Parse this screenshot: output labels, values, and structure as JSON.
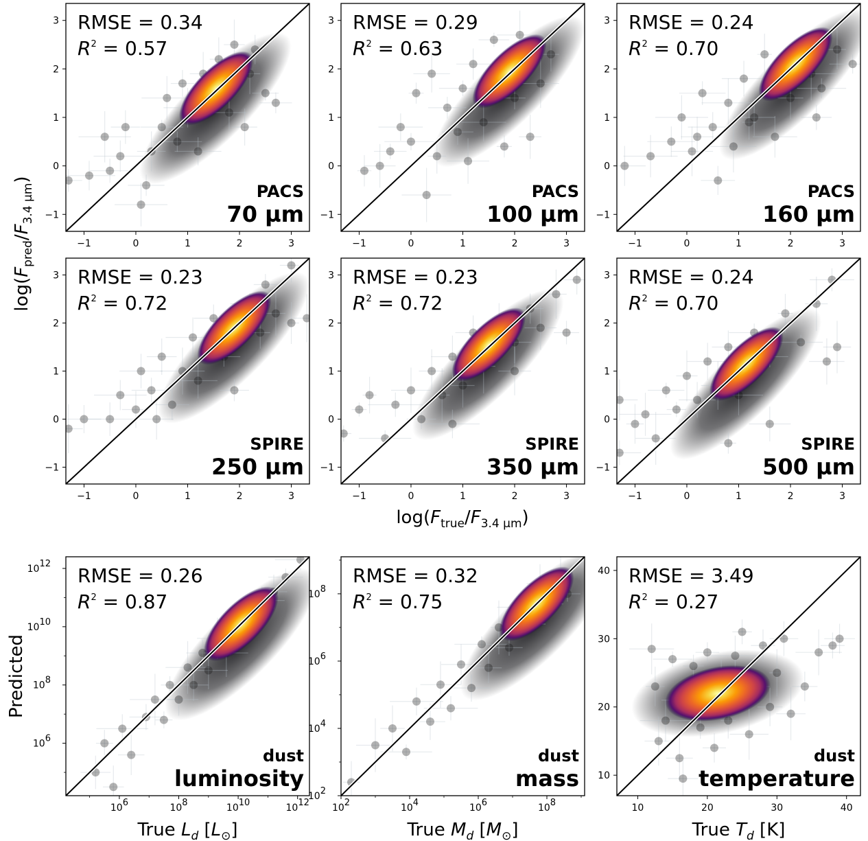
{
  "figure": {
    "ylabel_top": "log(F_pred/F_3.4µm)",
    "xlabel_mid": "log(F_true/F_3.4µm)",
    "ylabel_bottom": "Predicted"
  },
  "chart_data": [
    {
      "type": "scatter",
      "panel": "pacs-70",
      "band_top": "PACS",
      "band_bottom": "70 µm",
      "rmse_text": "RMSE = 0.34",
      "r2_text": "= 0.57",
      "scale": "linear",
      "xlim": [
        -1.35,
        3.35
      ],
      "ylim": [
        -1.35,
        3.35
      ],
      "xticks": [
        -1,
        0,
        1,
        2,
        3
      ],
      "yticks": [
        -1,
        0,
        1,
        2,
        3
      ],
      "xtick_labels": [
        "−1",
        "0",
        "1",
        "2",
        "3"
      ],
      "ytick_labels": [
        "−1",
        "0",
        "1",
        "2",
        "3"
      ],
      "density_peak": [
        1.55,
        1.6
      ],
      "points": [
        [
          -1.3,
          -0.3
        ],
        [
          -0.9,
          -0.2
        ],
        [
          -0.5,
          -0.1
        ],
        [
          -0.3,
          0.2
        ],
        [
          -0.2,
          0.8
        ],
        [
          0.1,
          -0.8
        ],
        [
          0.3,
          0.3
        ],
        [
          0.5,
          0.8
        ],
        [
          0.6,
          1.4
        ],
        [
          0.8,
          0.5
        ],
        [
          0.9,
          1.7
        ],
        [
          1.0,
          1.2
        ],
        [
          1.2,
          0.3
        ],
        [
          1.3,
          1.9
        ],
        [
          1.6,
          2.2
        ],
        [
          1.8,
          1.1
        ],
        [
          2.1,
          0.8
        ],
        [
          2.3,
          2.4
        ],
        [
          2.5,
          1.5
        ],
        [
          2.7,
          1.3
        ],
        [
          -0.6,
          0.6
        ],
        [
          0.2,
          -0.4
        ],
        [
          1.9,
          2.5
        ],
        [
          2.2,
          1.9
        ]
      ],
      "grid": false
    },
    {
      "type": "scatter",
      "panel": "pacs-100",
      "band_top": "PACS",
      "band_bottom": "100 µm",
      "rmse_text": "RMSE = 0.29",
      "r2_text": "= 0.63",
      "scale": "linear",
      "xlim": [
        -1.35,
        3.35
      ],
      "ylim": [
        -1.35,
        3.35
      ],
      "xticks": [
        -1,
        0,
        1,
        2,
        3
      ],
      "yticks": [
        -1,
        0,
        1,
        2,
        3
      ],
      "xtick_labels": [
        "−1",
        "0",
        "1",
        "2",
        "3"
      ],
      "ytick_labels": [
        "−1",
        "0",
        "1",
        "2",
        "3"
      ],
      "density_peak": [
        1.9,
        1.95
      ],
      "points": [
        [
          -0.9,
          -0.1
        ],
        [
          -0.4,
          0.3
        ],
        [
          -0.2,
          0.8
        ],
        [
          0.0,
          0.5
        ],
        [
          0.1,
          1.5
        ],
        [
          0.3,
          -0.6
        ],
        [
          0.5,
          0.2
        ],
        [
          0.7,
          1.2
        ],
        [
          0.9,
          0.7
        ],
        [
          1.0,
          1.6
        ],
        [
          1.2,
          2.1
        ],
        [
          1.4,
          0.9
        ],
        [
          1.6,
          2.6
        ],
        [
          1.8,
          0.4
        ],
        [
          2.0,
          1.4
        ],
        [
          2.3,
          0.6
        ],
        [
          2.5,
          1.7
        ],
        [
          2.7,
          2.3
        ],
        [
          0.4,
          1.9
        ],
        [
          -0.6,
          0.0
        ],
        [
          1.1,
          0.1
        ],
        [
          2.1,
          2.7
        ]
      ],
      "grid": false
    },
    {
      "type": "scatter",
      "panel": "pacs-160",
      "band_top": "PACS",
      "band_bottom": "160 µm",
      "rmse_text": "RMSE = 0.24",
      "r2_text": "= 0.70",
      "scale": "linear",
      "xlim": [
        -1.35,
        3.35
      ],
      "ylim": [
        -1.35,
        3.35
      ],
      "xticks": [
        -1,
        0,
        1,
        2,
        3
      ],
      "yticks": [
        -1,
        0,
        1,
        2,
        3
      ],
      "xtick_labels": [
        "−1",
        "0",
        "1",
        "2",
        "3"
      ],
      "ytick_labels": [
        "−1",
        "0",
        "1",
        "2",
        "3"
      ],
      "density_peak": [
        2.1,
        2.1
      ],
      "points": [
        [
          -1.2,
          0.0
        ],
        [
          -0.7,
          0.2
        ],
        [
          -0.3,
          0.5
        ],
        [
          -0.1,
          1.0
        ],
        [
          0.1,
          0.3
        ],
        [
          0.3,
          1.5
        ],
        [
          0.5,
          0.8
        ],
        [
          0.6,
          -0.3
        ],
        [
          0.8,
          1.3
        ],
        [
          0.9,
          0.4
        ],
        [
          1.1,
          1.8
        ],
        [
          1.3,
          1.0
        ],
        [
          1.5,
          2.3
        ],
        [
          1.7,
          0.6
        ],
        [
          2.0,
          1.4
        ],
        [
          2.4,
          1.9
        ],
        [
          2.6,
          1.6
        ],
        [
          2.9,
          2.4
        ],
        [
          3.2,
          2.1
        ],
        [
          2.5,
          1.0
        ],
        [
          0.2,
          0.6
        ],
        [
          1.2,
          0.9
        ]
      ],
      "grid": false
    },
    {
      "type": "scatter",
      "panel": "spire-250",
      "band_top": "SPIRE",
      "band_bottom": "250 µm",
      "rmse_text": "RMSE = 0.23",
      "r2_text": "= 0.72",
      "scale": "linear",
      "xlim": [
        -1.35,
        3.35
      ],
      "ylim": [
        -1.35,
        3.35
      ],
      "xticks": [
        -1,
        0,
        1,
        2,
        3
      ],
      "yticks": [
        -1,
        0,
        1,
        2,
        3
      ],
      "xtick_labels": [
        "−1",
        "0",
        "1",
        "2",
        "3"
      ],
      "ytick_labels": [
        "−1",
        "0",
        "1",
        "2",
        "3"
      ],
      "density_peak": [
        1.9,
        1.9
      ],
      "points": [
        [
          -1.3,
          -0.2
        ],
        [
          -1.0,
          0.0
        ],
        [
          -0.5,
          0.0
        ],
        [
          -0.3,
          0.5
        ],
        [
          0.0,
          0.2
        ],
        [
          0.1,
          1.0
        ],
        [
          0.3,
          0.6
        ],
        [
          0.5,
          1.3
        ],
        [
          0.7,
          0.3
        ],
        [
          0.9,
          1.0
        ],
        [
          1.1,
          1.7
        ],
        [
          1.2,
          0.8
        ],
        [
          1.5,
          2.1
        ],
        [
          1.7,
          1.3
        ],
        [
          1.9,
          0.6
        ],
        [
          2.2,
          2.4
        ],
        [
          2.4,
          1.8
        ],
        [
          2.7,
          2.2
        ],
        [
          3.0,
          2.0
        ],
        [
          3.3,
          2.1
        ],
        [
          3.0,
          3.2
        ],
        [
          2.5,
          2.8
        ],
        [
          0.4,
          0.0
        ]
      ],
      "grid": false
    },
    {
      "type": "scatter",
      "panel": "spire-350",
      "band_top": "SPIRE",
      "band_bottom": "350 µm",
      "rmse_text": "RMSE = 0.23",
      "r2_text": "= 0.72",
      "scale": "linear",
      "xlim": [
        -1.35,
        3.35
      ],
      "ylim": [
        -1.35,
        3.35
      ],
      "xticks": [
        -1,
        0,
        1,
        2,
        3
      ],
      "yticks": [
        -1,
        0,
        1,
        2,
        3
      ],
      "xtick_labels": [
        "−1",
        "0",
        "1",
        "2",
        "3"
      ],
      "ytick_labels": [
        "−1",
        "0",
        "1",
        "2",
        "3"
      ],
      "density_peak": [
        1.5,
        1.55
      ],
      "points": [
        [
          -1.3,
          -0.3
        ],
        [
          -1.0,
          0.2
        ],
        [
          -0.8,
          0.5
        ],
        [
          -0.5,
          -0.4
        ],
        [
          -0.3,
          0.3
        ],
        [
          0.0,
          0.6
        ],
        [
          0.2,
          0.0
        ],
        [
          0.4,
          1.0
        ],
        [
          0.6,
          0.5
        ],
        [
          0.8,
          1.3
        ],
        [
          1.0,
          0.7
        ],
        [
          1.2,
          1.8
        ],
        [
          1.4,
          1.1
        ],
        [
          1.7,
          2.0
        ],
        [
          2.0,
          1.6
        ],
        [
          2.3,
          2.3
        ],
        [
          2.5,
          1.9
        ],
        [
          2.8,
          2.6
        ],
        [
          3.0,
          1.8
        ],
        [
          3.2,
          2.9
        ],
        [
          0.8,
          -0.1
        ],
        [
          2.0,
          1.0
        ]
      ],
      "grid": false
    },
    {
      "type": "scatter",
      "panel": "spire-500",
      "band_top": "SPIRE",
      "band_bottom": "500 µm",
      "rmse_text": "RMSE = 0.24",
      "r2_text": "= 0.70",
      "scale": "linear",
      "xlim": [
        -1.35,
        3.35
      ],
      "ylim": [
        -1.35,
        3.35
      ],
      "xticks": [
        -1,
        0,
        1,
        2,
        3
      ],
      "yticks": [
        -1,
        0,
        1,
        2,
        3
      ],
      "xtick_labels": [
        "−1",
        "0",
        "1",
        "2",
        "3"
      ],
      "ytick_labels": [
        "−1",
        "0",
        "1",
        "2",
        "3"
      ],
      "density_peak": [
        1.15,
        1.15
      ],
      "points": [
        [
          -1.3,
          -0.7
        ],
        [
          -1.3,
          0.4
        ],
        [
          -1.0,
          -0.1
        ],
        [
          -0.8,
          0.1
        ],
        [
          -0.6,
          -0.4
        ],
        [
          -0.4,
          0.6
        ],
        [
          -0.2,
          0.2
        ],
        [
          0.0,
          0.9
        ],
        [
          0.2,
          0.4
        ],
        [
          0.4,
          1.2
        ],
        [
          0.6,
          0.7
        ],
        [
          0.8,
          1.5
        ],
        [
          1.0,
          0.5
        ],
        [
          1.3,
          1.8
        ],
        [
          1.6,
          1.3
        ],
        [
          1.9,
          2.2
        ],
        [
          2.2,
          1.6
        ],
        [
          2.5,
          2.4
        ],
        [
          2.7,
          1.2
        ],
        [
          2.9,
          1.5
        ],
        [
          2.8,
          2.9
        ],
        [
          1.6,
          -0.1
        ],
        [
          0.8,
          -0.5
        ]
      ],
      "grid": false
    },
    {
      "type": "scatter",
      "panel": "dust-luminosity",
      "band_top": "dust",
      "band_bottom": "luminosity",
      "rmse_text": "RMSE = 0.26",
      "r2_text": "= 0.87",
      "scale": "log",
      "xlim": [
        4.2,
        12.4
      ],
      "ylim": [
        4.2,
        12.4
      ],
      "xticks": [
        6,
        8,
        10,
        12
      ],
      "yticks": [
        6,
        8,
        10,
        12
      ],
      "xtick_labels": [
        "10",
        "10",
        "10",
        "10"
      ],
      "xtick_exps": [
        "6",
        "8",
        "10",
        "12"
      ],
      "ytick_labels": [
        "10",
        "10",
        "10",
        "10"
      ],
      "ytick_exps": [
        "6",
        "8",
        "10",
        "12"
      ],
      "density_peak": [
        10.1,
        10.1
      ],
      "points": [
        [
          5.2,
          5.0
        ],
        [
          5.5,
          6.0
        ],
        [
          5.8,
          4.5
        ],
        [
          6.1,
          6.5
        ],
        [
          6.4,
          5.6
        ],
        [
          6.9,
          6.9
        ],
        [
          7.2,
          7.5
        ],
        [
          7.5,
          6.8
        ],
        [
          7.7,
          8.0
        ],
        [
          8.0,
          7.5
        ],
        [
          8.3,
          8.6
        ],
        [
          8.5,
          8.0
        ],
        [
          8.8,
          9.1
        ],
        [
          9.0,
          8.5
        ],
        [
          9.3,
          9.6
        ],
        [
          9.6,
          9.1
        ],
        [
          10.0,
          10.0
        ],
        [
          10.4,
          10.5
        ],
        [
          10.8,
          10.9
        ],
        [
          11.2,
          11.2
        ],
        [
          11.6,
          11.7
        ],
        [
          12.1,
          12.3
        ]
      ],
      "grid": false
    },
    {
      "type": "scatter",
      "panel": "dust-mass",
      "band_top": "dust",
      "band_bottom": "mass",
      "rmse_text": "RMSE = 0.32",
      "r2_text": "= 0.75",
      "scale": "log",
      "xlim": [
        2.0,
        9.1
      ],
      "ylim": [
        2.0,
        9.1
      ],
      "xticks": [
        2,
        4,
        6,
        8
      ],
      "yticks": [
        2,
        4,
        6,
        8
      ],
      "xtick_labels": [
        "10",
        "10",
        "10",
        "10"
      ],
      "xtick_exps": [
        "2",
        "4",
        "6",
        "8"
      ],
      "ytick_labels": [
        "10",
        "10",
        "10",
        "10"
      ],
      "ytick_exps": [
        "2",
        "4",
        "6",
        "8"
      ],
      "density_peak": [
        7.7,
        7.7
      ],
      "points": [
        [
          2.3,
          2.4
        ],
        [
          3.0,
          3.5
        ],
        [
          3.5,
          4.0
        ],
        [
          3.9,
          3.3
        ],
        [
          4.2,
          4.8
        ],
        [
          4.6,
          4.2
        ],
        [
          4.9,
          5.3
        ],
        [
          5.2,
          4.6
        ],
        [
          5.5,
          5.9
        ],
        [
          5.8,
          5.2
        ],
        [
          6.1,
          6.5
        ],
        [
          6.3,
          5.8
        ],
        [
          6.6,
          7.0
        ],
        [
          6.9,
          6.4
        ],
        [
          7.2,
          7.6
        ],
        [
          7.5,
          7.1
        ],
        [
          7.8,
          8.3
        ],
        [
          8.1,
          7.7
        ],
        [
          8.4,
          8.5
        ],
        [
          8.6,
          8.0
        ]
      ],
      "grid": false
    },
    {
      "type": "scatter",
      "panel": "dust-temperature",
      "band_top": "dust",
      "band_bottom": "temperature",
      "rmse_text": "RMSE = 3.49",
      "r2_text": "= 0.27",
      "scale": "linear",
      "xlim": [
        7.0,
        42.0
      ],
      "ylim": [
        7.0,
        42.0
      ],
      "xticks": [
        10,
        20,
        30,
        40
      ],
      "yticks": [
        10,
        20,
        30,
        40
      ],
      "xtick_labels": [
        "10",
        "20",
        "30",
        "40"
      ],
      "ytick_labels": [
        "10",
        "20",
        "30",
        "40"
      ],
      "density_peak": [
        21.5,
        22.0
      ],
      "points": [
        [
          12.0,
          28.5
        ],
        [
          12.5,
          23.0
        ],
        [
          13.0,
          15.0
        ],
        [
          14.0,
          18.0
        ],
        [
          15.0,
          27.0
        ],
        [
          16.0,
          12.5
        ],
        [
          16.5,
          9.5
        ],
        [
          17.0,
          21.0
        ],
        [
          18.0,
          26.0
        ],
        [
          19.0,
          17.0
        ],
        [
          20.0,
          28.0
        ],
        [
          21.0,
          14.0
        ],
        [
          22.0,
          24.0
        ],
        [
          23.0,
          18.0
        ],
        [
          24.0,
          27.5
        ],
        [
          25.0,
          31.0
        ],
        [
          26.0,
          16.0
        ],
        [
          27.0,
          23.0
        ],
        [
          28.0,
          29.0
        ],
        [
          29.0,
          20.0
        ],
        [
          30.0,
          25.0
        ],
        [
          31.0,
          30.0
        ],
        [
          32.0,
          19.0
        ],
        [
          34.0,
          23.0
        ],
        [
          36.0,
          28.0
        ],
        [
          38.0,
          29.0
        ],
        [
          39.0,
          30.0
        ]
      ],
      "grid": false
    }
  ],
  "bottom_xlabels": [
    {
      "pre": "True ",
      "sym": "L",
      "sub": "d",
      "mid": " [",
      "unit": "L",
      "unit_sub": "⊙",
      "post": "]"
    },
    {
      "pre": "True ",
      "sym": "M",
      "sub": "d",
      "mid": " [",
      "unit": "M",
      "unit_sub": "⊙",
      "post": "]"
    },
    {
      "pre": "True ",
      "sym": "T",
      "sub": "d",
      "mid": " [K]",
      "unit": "",
      "unit_sub": "",
      "post": ""
    }
  ]
}
